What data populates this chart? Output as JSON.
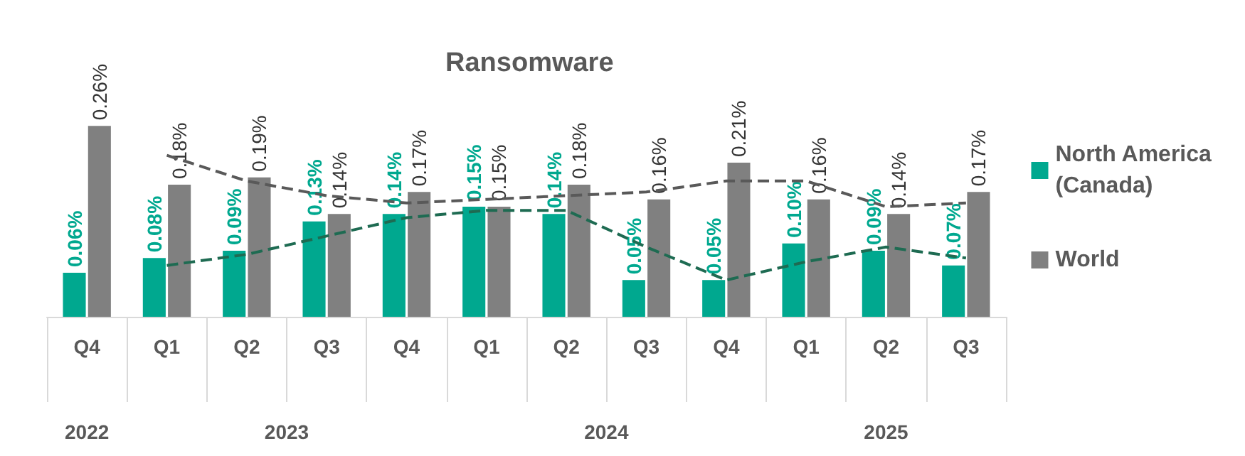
{
  "chart_data": {
    "type": "bar",
    "title": "Ransomware",
    "categories": [
      "Q4",
      "Q1",
      "Q2",
      "Q3",
      "Q4",
      "Q1",
      "Q2",
      "Q3",
      "Q4",
      "Q1",
      "Q2",
      "Q3"
    ],
    "series": [
      {
        "name": "North America (Canada)",
        "color": "#00a88f",
        "values": [
          0.06,
          0.08,
          0.09,
          0.13,
          0.14,
          0.15,
          0.14,
          0.05,
          0.05,
          0.1,
          0.09,
          0.07
        ],
        "value_labels": [
          "0.06%",
          "0.08%",
          "0.09%",
          "0.13%",
          "0.14%",
          "0.15%",
          "0.14%",
          "0.05%",
          "0.05%",
          "0.10%",
          "0.09%",
          "0.07%"
        ]
      },
      {
        "name": "World",
        "color": "#808080",
        "values": [
          0.26,
          0.18,
          0.19,
          0.14,
          0.17,
          0.15,
          0.18,
          0.16,
          0.21,
          0.16,
          0.14,
          0.17
        ],
        "value_labels": [
          "0.26%",
          "0.18%",
          "0.19%",
          "0.14%",
          "0.17%",
          "0.15%",
          "0.18%",
          "0.16%",
          "0.21%",
          "0.16%",
          "0.14%",
          "0.17%"
        ]
      },
      {
        "type": "line",
        "color": "#1e6b52",
        "line_style": "dashed",
        "marker": "none",
        "values": [
          null,
          0.07,
          0.085,
          0.11,
          0.135,
          0.145,
          0.145,
          0.095,
          0.05,
          0.075,
          0.095,
          0.08
        ]
      },
      {
        "type": "line",
        "color": "#595959",
        "line_style": "dashed",
        "marker": "none",
        "values": [
          null,
          0.22,
          0.185,
          0.165,
          0.155,
          0.16,
          0.165,
          0.17,
          0.185,
          0.185,
          0.15,
          0.155
        ]
      }
    ],
    "annotations": [
      "2022",
      "2023",
      "2024",
      "2025"
    ],
    "grid": false,
    "legend": "right"
  }
}
